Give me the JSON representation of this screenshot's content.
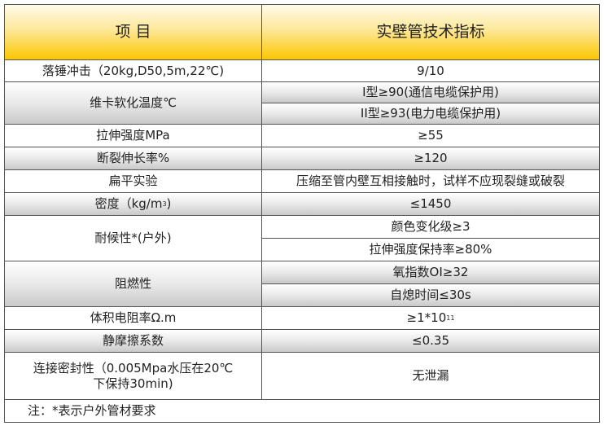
{
  "header": {
    "item": "项 目",
    "spec": "实壁管技术指标"
  },
  "rows": [
    {
      "item": "落锤冲击（20kg,D50,5m,22℃)",
      "values": [
        "9/10"
      ]
    },
    {
      "item": "维卡软化温度℃",
      "values": [
        "I型≥90(通信电缆保护用)",
        "II型≥93(电力电缆保护用)"
      ]
    },
    {
      "item": "拉伸强度MPa",
      "values": [
        "≥55"
      ]
    },
    {
      "item": "断裂伸长率%",
      "values": [
        "≥120"
      ]
    },
    {
      "item": "扁平实验",
      "values": [
        "压缩至管内壁互相接触时，试样不应现裂缝或破裂"
      ]
    },
    {
      "item": "密度（kg/m",
      "item_sup": "3",
      "item_end": ")",
      "values": [
        "≤1450"
      ]
    },
    {
      "item": "耐候性*(户外)",
      "values": [
        "颜色变化级≥3",
        "拉伸强度保持率≥80%"
      ]
    },
    {
      "item": "阻燃性",
      "values": [
        "氧指数OI≥32",
        "自熄时间≤30s"
      ]
    },
    {
      "item": "体积电阻率Ω.m",
      "values": [
        "≥1*10"
      ],
      "value_sup": "11"
    },
    {
      "item": "静摩擦系数",
      "values": [
        "≤0.35"
      ]
    },
    {
      "item": "连接密封性（0.005Mpa水压在20℃下保持30min)",
      "values": [
        "无泄漏"
      ]
    }
  ],
  "note": "注：*表示户外管材要求"
}
